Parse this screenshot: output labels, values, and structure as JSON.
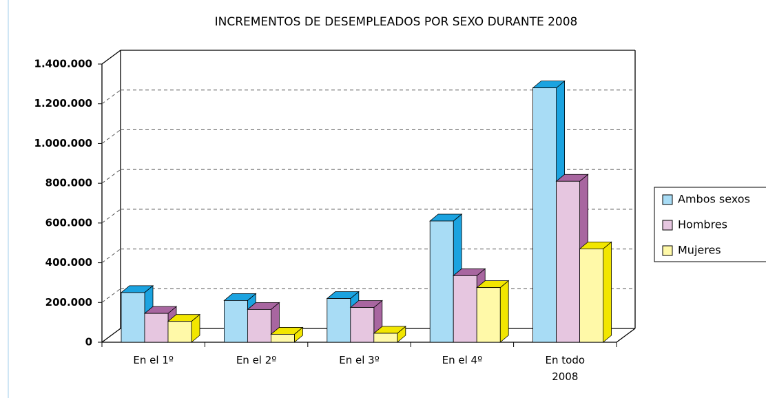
{
  "chart_data": {
    "type": "bar3d",
    "title": "INCREMENTOS DE DESEMPLEADOS POR SEXO DURANTE 2008",
    "categories": [
      "En el 1º",
      "En el 2º",
      "En el 3º",
      "En el 4º",
      "En todo 2008"
    ],
    "series": [
      {
        "name": "Ambos sexos",
        "color": "#a8dcf5",
        "values": [
          250000,
          210000,
          220000,
          610000,
          1280000
        ]
      },
      {
        "name": "Hombres",
        "color": "#e6c6e0",
        "values": [
          145000,
          165000,
          175000,
          335000,
          810000
        ]
      },
      {
        "name": "Mujeres",
        "color": "#fff9a8",
        "values": [
          105000,
          40000,
          45000,
          275000,
          470000
        ]
      }
    ],
    "ylim": [
      0,
      1400000
    ],
    "yticks": [
      0,
      {
        "value": 200000,
        "label": "200.000"
      },
      {
        "value": 400000,
        "label": "400.000"
      },
      {
        "value": 600000,
        "label": "600.000"
      },
      {
        "value": 800000,
        "label": "800.000"
      },
      {
        "value": 1000000,
        "label": "1.000.000"
      },
      {
        "value": 1200000,
        "label": "1.200.000"
      },
      {
        "value": 1400000,
        "label": "1.400.000"
      }
    ],
    "grid": true,
    "legend": "right"
  }
}
